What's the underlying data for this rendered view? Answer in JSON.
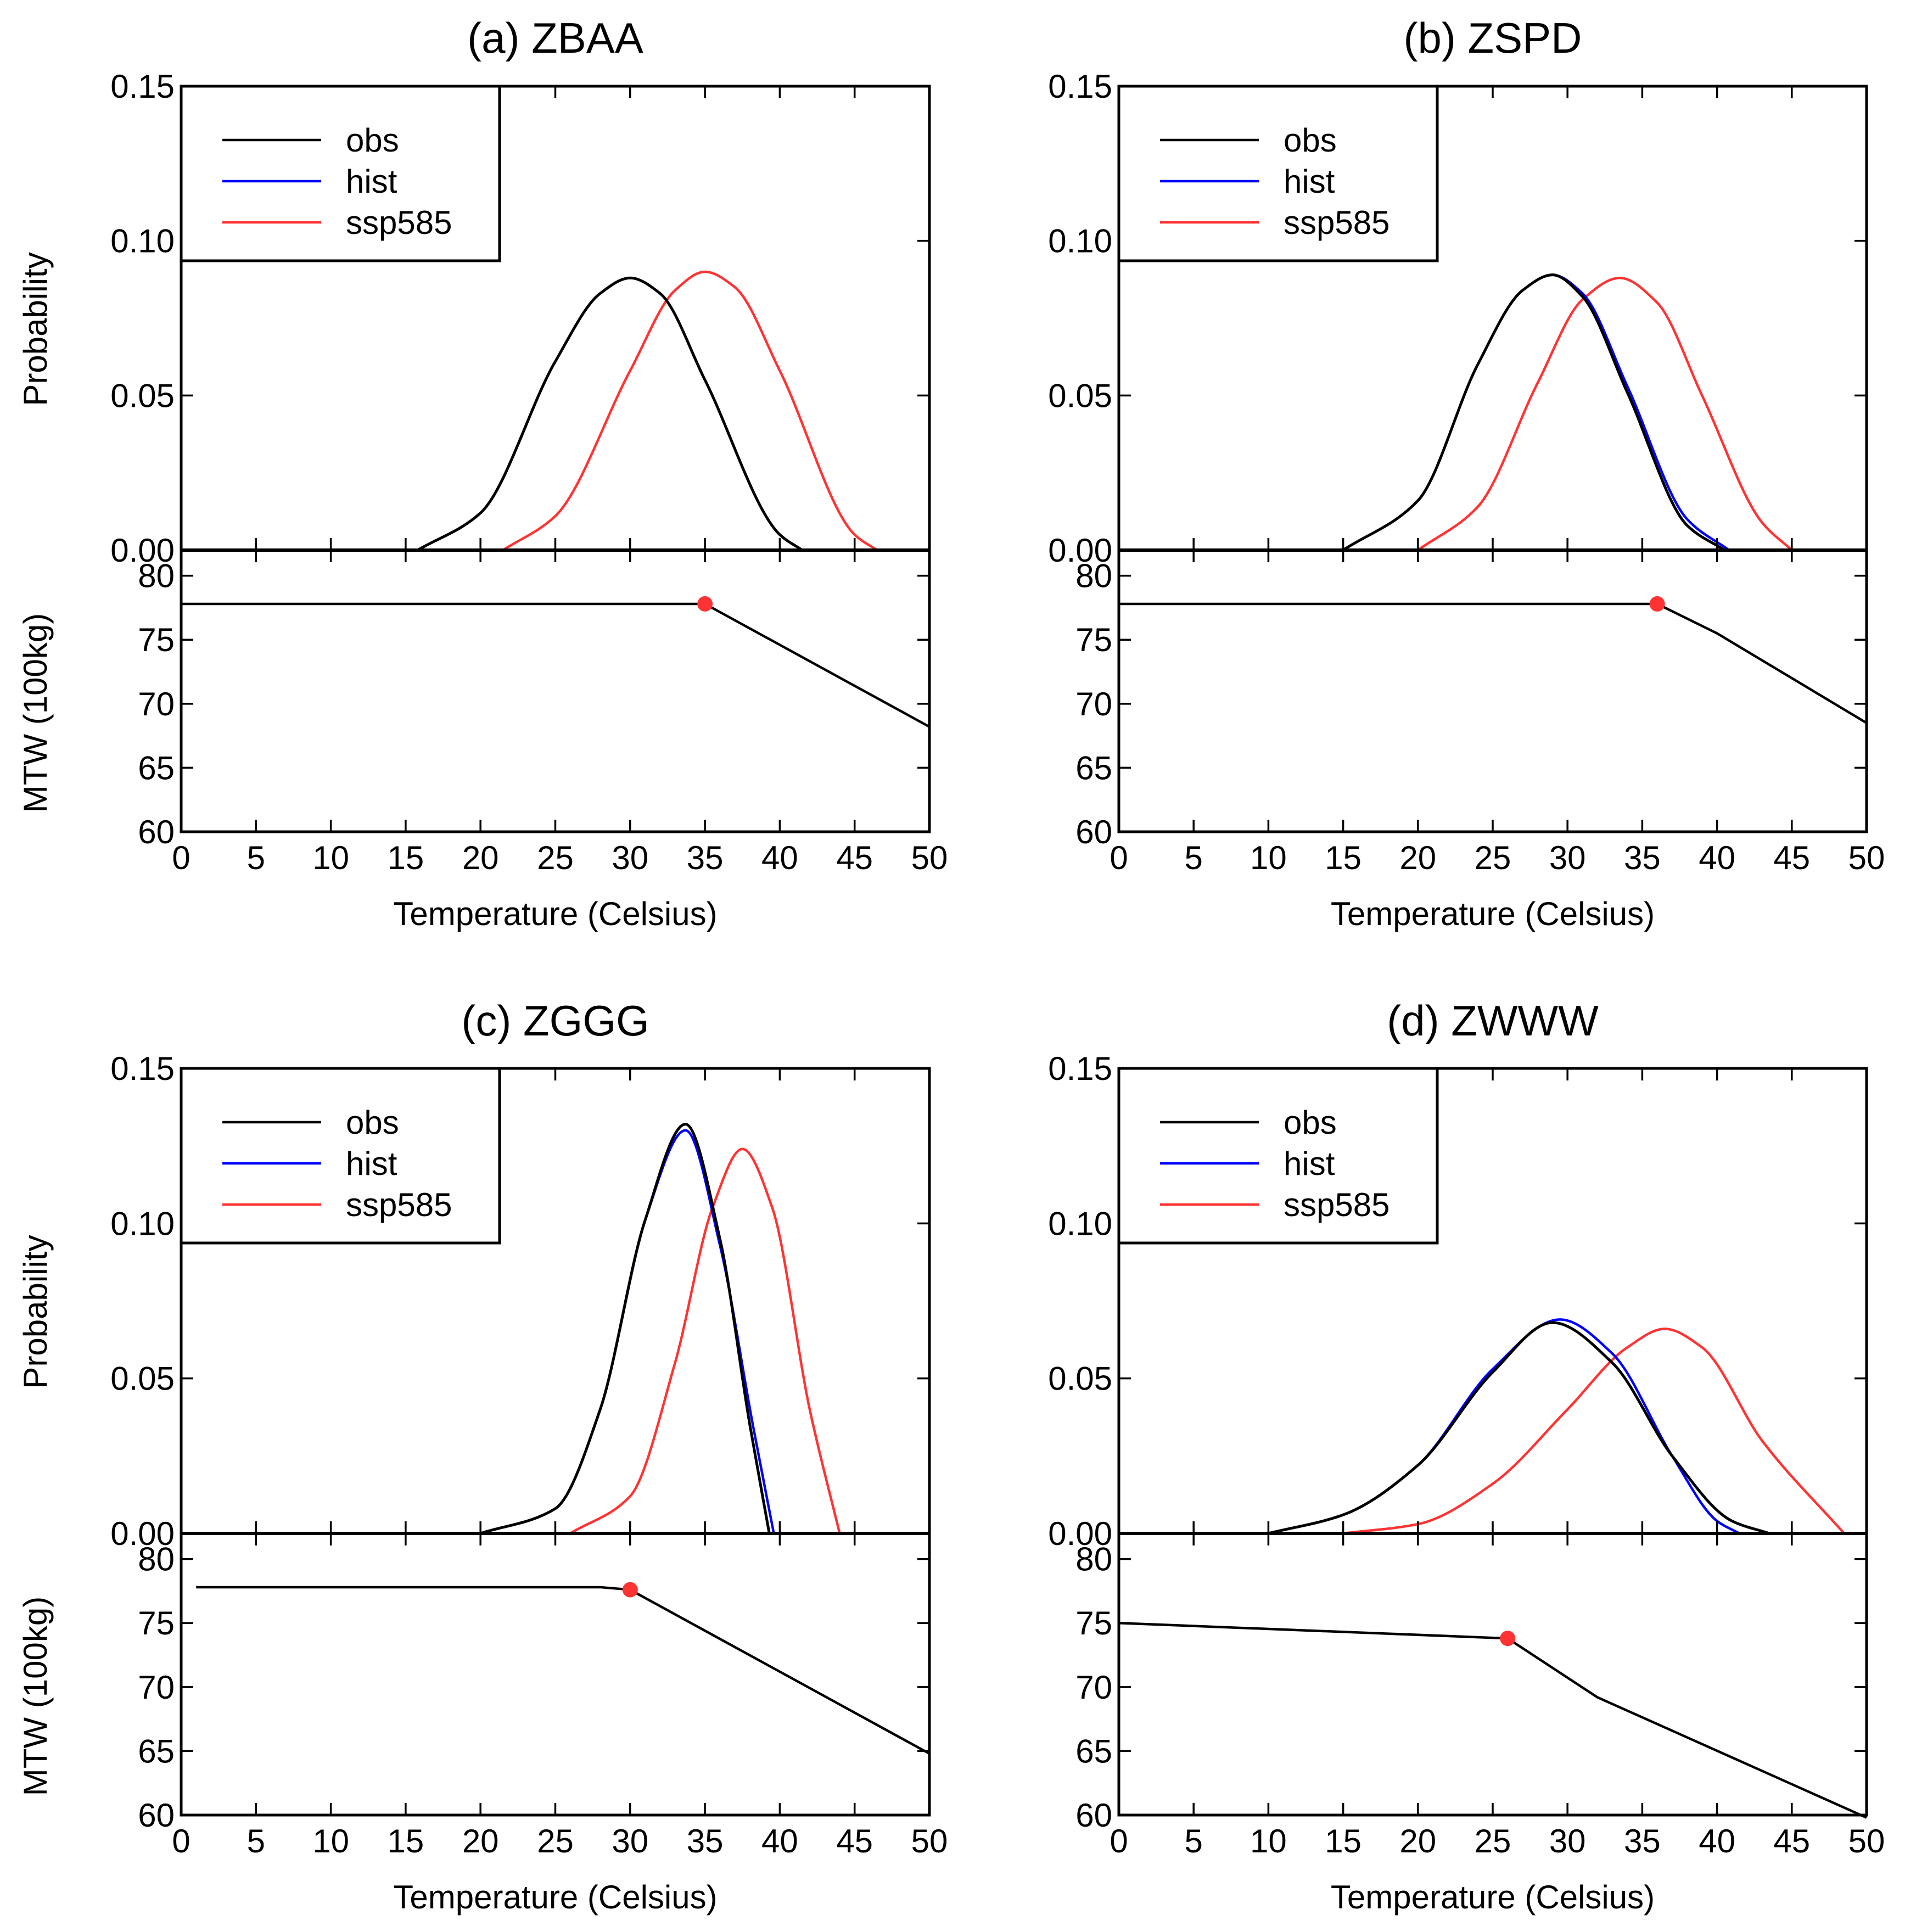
{
  "colors": {
    "obs": "#000000",
    "hist": "#0000ff",
    "ssp585": "#ff3333",
    "marker": "#ff3333"
  },
  "chart_data": [
    {
      "type": "line",
      "title": "(a) ZBAA",
      "xlabel": "Temperature (Celsius)",
      "xlim": [
        0,
        50
      ],
      "x_ticks": [
        0,
        5,
        10,
        15,
        20,
        25,
        30,
        35,
        40,
        45,
        50
      ],
      "prob": {
        "ylabel": "Probability",
        "ylim": [
          0,
          0.15
        ],
        "y_ticks": [
          "0.00",
          "0.05",
          "0.10",
          "0.15"
        ],
        "legend": [
          "obs",
          "hist",
          "ssp585"
        ],
        "series": [
          {
            "name": "obs",
            "x": [
              15.8,
              20,
              25,
              28,
              30,
              32,
              35,
              40,
              41.5
            ],
            "y": [
              0,
              0.012,
              0.061,
              0.083,
              0.088,
              0.083,
              0.055,
              0.005,
              0
            ]
          },
          {
            "name": "hist",
            "x": [
              15.8,
              20,
              25,
              28,
              30,
              32,
              35,
              40,
              41.5
            ],
            "y": [
              0,
              0.012,
              0.061,
              0.083,
              0.088,
              0.083,
              0.055,
              0.005,
              0
            ]
          },
          {
            "name": "ssp585",
            "x": [
              21.5,
              25,
              30,
              33,
              35,
              37,
              40,
              45,
              46.5
            ],
            "y": [
              0,
              0.011,
              0.058,
              0.084,
              0.09,
              0.085,
              0.058,
              0.005,
              0
            ]
          }
        ]
      },
      "mtw": {
        "ylabel": "MTW (100kg)",
        "ylim": [
          60,
          82
        ],
        "y_ticks": [
          "60",
          "65",
          "70",
          "75",
          "80"
        ],
        "line": {
          "x": [
            0,
            35,
            50
          ],
          "y": [
            77.8,
            77.8,
            68.2
          ]
        },
        "marker": {
          "x": 35,
          "y": 77.8
        }
      }
    },
    {
      "type": "line",
      "title": "(b) ZSPD",
      "xlabel": "Temperature (Celsius)",
      "xlim": [
        0,
        50
      ],
      "x_ticks": [
        0,
        5,
        10,
        15,
        20,
        25,
        30,
        35,
        40,
        45,
        50
      ],
      "prob": {
        "ylabel": "",
        "ylim": [
          0,
          0.15
        ],
        "y_ticks": [
          "0.00",
          "0.05",
          "0.10",
          "0.15"
        ],
        "legend": [
          "obs",
          "hist",
          "ssp585"
        ],
        "series": [
          {
            "name": "obs",
            "x": [
              15,
              20,
              24,
              27,
              29,
              31,
              34,
              38,
              40.5
            ],
            "y": [
              0,
              0.016,
              0.06,
              0.084,
              0.089,
              0.082,
              0.051,
              0.008,
              0
            ]
          },
          {
            "name": "hist",
            "x": [
              15,
              20,
              24,
              27,
              29,
              31,
              34,
              38,
              40.8
            ],
            "y": [
              0,
              0.016,
              0.06,
              0.084,
              0.089,
              0.083,
              0.053,
              0.01,
              0
            ]
          },
          {
            "name": "ssp585",
            "x": [
              20,
              24,
              28,
              31,
              33.5,
              36,
              39,
              43,
              45
            ],
            "y": [
              0,
              0.014,
              0.054,
              0.081,
              0.088,
              0.08,
              0.05,
              0.009,
              0
            ]
          }
        ]
      },
      "mtw": {
        "ylabel": "",
        "ylim": [
          60,
          82
        ],
        "y_ticks": [
          "60",
          "65",
          "70",
          "75",
          "80"
        ],
        "line": {
          "x": [
            0,
            36,
            40,
            50
          ],
          "y": [
            77.8,
            77.8,
            75.5,
            68.5
          ]
        },
        "marker": {
          "x": 36,
          "y": 77.8
        }
      }
    },
    {
      "type": "line",
      "title": "(c) ZGGG",
      "xlabel": "Temperature (Celsius)",
      "xlim": [
        0,
        50
      ],
      "x_ticks": [
        0,
        5,
        10,
        15,
        20,
        25,
        30,
        35,
        40,
        45,
        50
      ],
      "prob": {
        "ylabel": "Probability",
        "ylim": [
          0,
          0.15
        ],
        "y_ticks": [
          "0.00",
          "0.05",
          "0.10",
          "0.15"
        ],
        "legend": [
          "obs",
          "hist",
          "ssp585"
        ],
        "series": [
          {
            "name": "obs",
            "x": [
              20,
              25,
              28,
              31,
              33.7,
              36,
              38,
              39.3
            ],
            "y": [
              0,
              0.008,
              0.04,
              0.101,
              0.132,
              0.095,
              0.035,
              0
            ]
          },
          {
            "name": "hist",
            "x": [
              20,
              25,
              28,
              31,
              33.7,
              36,
              38.2,
              39.6
            ],
            "y": [
              0,
              0.008,
              0.04,
              0.101,
              0.13,
              0.093,
              0.035,
              0
            ]
          },
          {
            "name": "ssp585",
            "x": [
              26,
              30,
              33,
              35.5,
              37.5,
              39.5,
              42,
              44
            ],
            "y": [
              0,
              0.012,
              0.055,
              0.105,
              0.124,
              0.105,
              0.04,
              0
            ]
          }
        ]
      },
      "mtw": {
        "ylabel": "MTW (100kg)",
        "ylim": [
          60,
          82
        ],
        "y_ticks": [
          "60",
          "65",
          "70",
          "75",
          "80"
        ],
        "line": {
          "x": [
            1,
            28,
            30,
            50
          ],
          "y": [
            77.8,
            77.8,
            77.6,
            64.8
          ]
        },
        "marker": {
          "x": 30,
          "y": 77.6
        }
      }
    },
    {
      "type": "line",
      "title": "(d) ZWWW",
      "xlabel": "Temperature (Celsius)",
      "xlim": [
        0,
        50
      ],
      "x_ticks": [
        0,
        5,
        10,
        15,
        20,
        25,
        30,
        35,
        40,
        45,
        50
      ],
      "prob": {
        "ylabel": "",
        "ylim": [
          0,
          0.15
        ],
        "y_ticks": [
          "0.00",
          "0.05",
          "0.10",
          "0.15"
        ],
        "legend": [
          "obs",
          "hist",
          "ssp585"
        ],
        "series": [
          {
            "name": "obs",
            "x": [
              10,
              15,
              20,
              25,
              29,
              33,
              37,
              41,
              43.5
            ],
            "y": [
              0,
              0.006,
              0.022,
              0.052,
              0.068,
              0.055,
              0.025,
              0.004,
              0
            ]
          },
          {
            "name": "hist",
            "x": [
              10,
              15,
              20,
              25,
              29.5,
              33,
              37,
              40,
              41.5
            ],
            "y": [
              0,
              0.006,
              0.022,
              0.053,
              0.069,
              0.058,
              0.025,
              0.004,
              0
            ]
          },
          {
            "name": "ssp585",
            "x": [
              15,
              20,
              25,
              30,
              34,
              36.5,
              39,
              43,
              48.5
            ],
            "y": [
              0,
              0.003,
              0.016,
              0.04,
              0.06,
              0.066,
              0.06,
              0.03,
              0
            ]
          }
        ]
      },
      "mtw": {
        "ylabel": "",
        "ylim": [
          60,
          82
        ],
        "y_ticks": [
          "60",
          "65",
          "70",
          "75",
          "80"
        ],
        "line": {
          "x": [
            0,
            26,
            32,
            50
          ],
          "y": [
            75.0,
            73.8,
            69.2,
            59.8
          ]
        },
        "marker": {
          "x": 26,
          "y": 73.8
        }
      }
    }
  ]
}
